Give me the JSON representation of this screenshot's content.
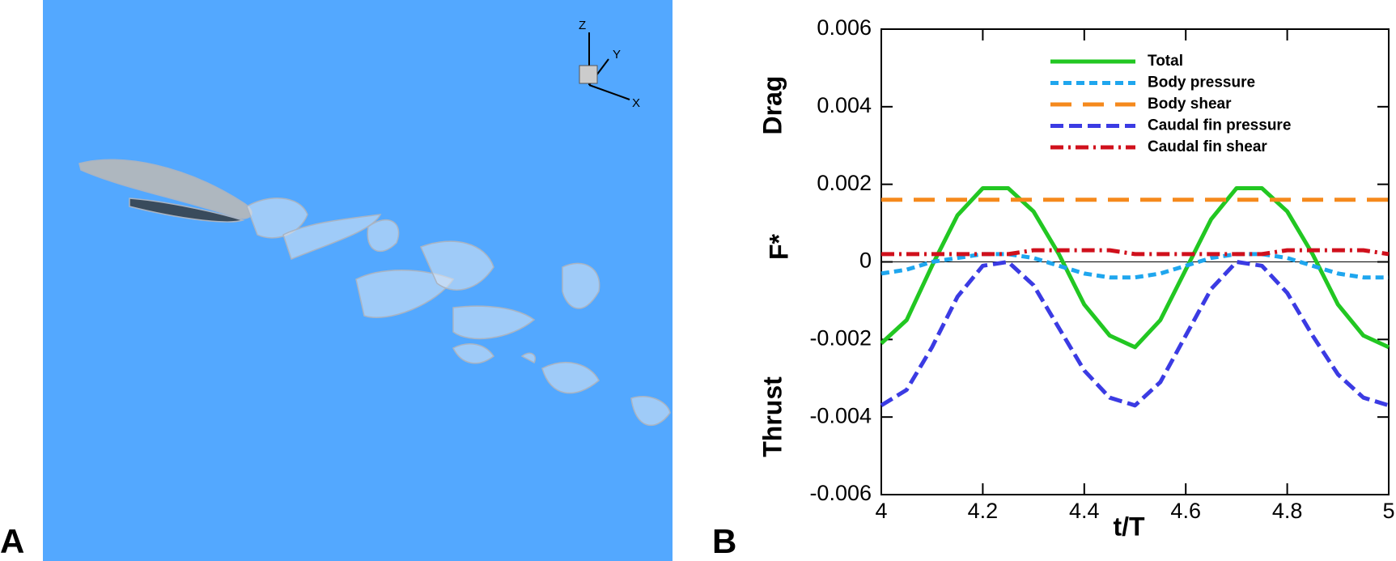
{
  "panels": {
    "left_label": "A",
    "right_label": "B"
  },
  "triad": {
    "z": "Z",
    "y": "Y",
    "x": "X"
  },
  "chart_data": {
    "type": "line",
    "xlabel": "t/T",
    "ylabel": "F*",
    "annotations": {
      "top": "Drag",
      "bottom": "Thrust"
    },
    "x": [
      4.0,
      4.05,
      4.1,
      4.15,
      4.2,
      4.25,
      4.3,
      4.35,
      4.4,
      4.45,
      4.5,
      4.55,
      4.6,
      4.65,
      4.7,
      4.75,
      4.8,
      4.85,
      4.9,
      4.95,
      5.0
    ],
    "series": [
      {
        "name": "Total",
        "color": "#22c722",
        "style": "solid",
        "values": [
          -0.0021,
          -0.0015,
          -0.0001,
          0.0012,
          0.0019,
          0.0019,
          0.0013,
          0.0002,
          -0.0011,
          -0.0019,
          -0.0022,
          -0.0015,
          -0.0002,
          0.0011,
          0.0019,
          0.0019,
          0.0013,
          0.0002,
          -0.0011,
          -0.0019,
          -0.0022
        ]
      },
      {
        "name": "Body pressure",
        "color": "#1fa6ee",
        "style": "short-dash",
        "values": [
          -0.0003,
          -0.0002,
          0.0,
          0.0001,
          0.0002,
          0.0002,
          0.0001,
          -0.0001,
          -0.0003,
          -0.0004,
          -0.0004,
          -0.0003,
          -0.0001,
          0.0001,
          0.0002,
          0.0002,
          0.0001,
          -0.0001,
          -0.0003,
          -0.0004,
          -0.0004
        ]
      },
      {
        "name": "Body shear",
        "color": "#f5891c",
        "style": "long-dash",
        "values": [
          0.0016,
          0.0016,
          0.0016,
          0.0016,
          0.0016,
          0.0016,
          0.0016,
          0.0016,
          0.0016,
          0.0016,
          0.0016,
          0.0016,
          0.0016,
          0.0016,
          0.0016,
          0.0016,
          0.0016,
          0.0016,
          0.0016,
          0.0016,
          0.0016
        ]
      },
      {
        "name": "Caudal fin pressure",
        "color": "#3b3be3",
        "style": "dash",
        "values": [
          -0.0037,
          -0.0033,
          -0.0022,
          -0.0009,
          -0.0001,
          0.0,
          -0.0006,
          -0.0017,
          -0.0028,
          -0.0035,
          -0.0037,
          -0.0031,
          -0.0019,
          -0.0007,
          0.0,
          -0.0001,
          -0.0008,
          -0.0019,
          -0.0029,
          -0.0035,
          -0.0037
        ]
      },
      {
        "name": "Caudal fin shear",
        "color": "#d0101c",
        "style": "dash-dot",
        "values": [
          0.0002,
          0.0002,
          0.0002,
          0.0002,
          0.0002,
          0.0002,
          0.0003,
          0.0003,
          0.0003,
          0.0003,
          0.0002,
          0.0002,
          0.0002,
          0.0002,
          0.0002,
          0.0002,
          0.0003,
          0.0003,
          0.0003,
          0.0003,
          0.0002
        ]
      }
    ],
    "xlim": [
      4,
      5
    ],
    "xticks": [
      4,
      4.2,
      4.4,
      4.6,
      4.8,
      5
    ],
    "ylim": [
      -0.006,
      0.006
    ],
    "yticks": [
      -0.006,
      -0.004,
      -0.002,
      0,
      0.002,
      0.004,
      0.006
    ],
    "zero_line": true,
    "legend": "top-center"
  }
}
